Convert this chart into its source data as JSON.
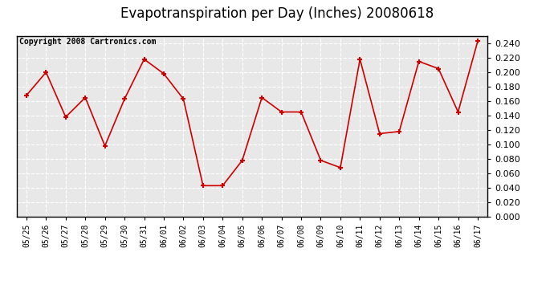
{
  "title": "Evapotranspiration per Day (Inches) 20080618",
  "copyright": "Copyright 2008 Cartronics.com",
  "dates": [
    "05/25",
    "05/26",
    "05/27",
    "05/28",
    "05/29",
    "05/30",
    "05/31",
    "06/01",
    "06/02",
    "06/03",
    "06/04",
    "06/05",
    "06/06",
    "06/07",
    "06/08",
    "06/09",
    "06/10",
    "06/11",
    "06/12",
    "06/13",
    "06/14",
    "06/15",
    "06/16",
    "06/17"
  ],
  "values": [
    0.168,
    0.2,
    0.138,
    0.165,
    0.098,
    0.163,
    0.218,
    0.198,
    0.163,
    0.043,
    0.043,
    0.078,
    0.165,
    0.145,
    0.145,
    0.078,
    0.068,
    0.218,
    0.115,
    0.118,
    0.215,
    0.205,
    0.145,
    0.243
  ],
  "line_color": "#cc0000",
  "marker": "+",
  "marker_color": "#cc0000",
  "bg_color": "#e8e8e8",
  "grid_color": "#ffffff",
  "ylim": [
    0.0,
    0.25
  ],
  "ytick_step": 0.02,
  "title_fontsize": 12,
  "copyright_fontsize": 7
}
